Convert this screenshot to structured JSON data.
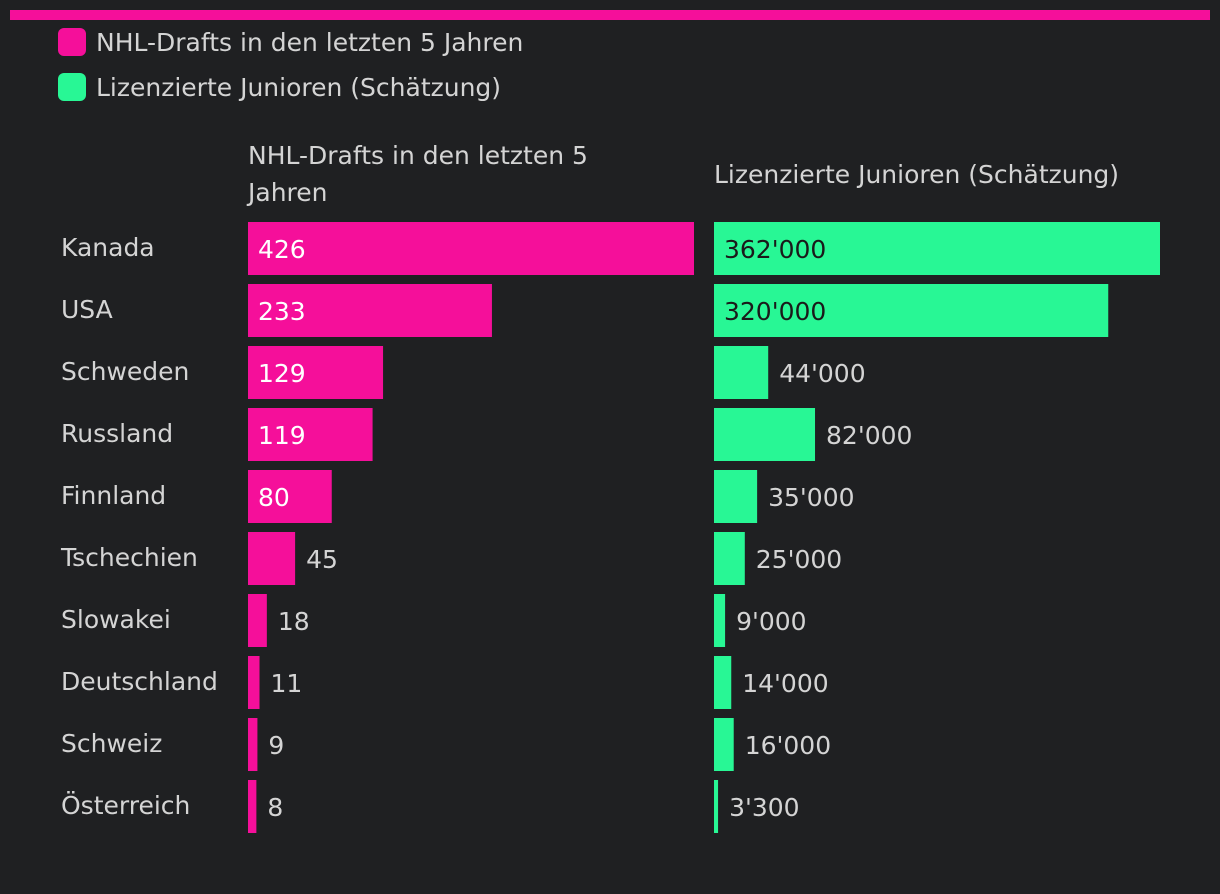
{
  "colors": {
    "background": "#1f2022",
    "drafts": "#f50f9a",
    "juniors": "#28f795",
    "text": "#d4d4d4"
  },
  "chart_data": {
    "type": "bar",
    "orientation": "horizontal",
    "categories": [
      "Kanada",
      "USA",
      "Schweden",
      "Russland",
      "Finnland",
      "Tschechien",
      "Slowakei",
      "Deutschland",
      "Schweiz",
      "Österreich"
    ],
    "series": [
      {
        "name": "NHL-Drafts in den letzten 5 Jahren",
        "column_header": "NHL-Drafts in den letzten 5 Jahren",
        "color": "#f50f9a",
        "values": [
          426,
          233,
          129,
          119,
          80,
          45,
          18,
          11,
          9,
          8
        ],
        "labels": [
          "426",
          "233",
          "129",
          "119",
          "80",
          "45",
          "18",
          "11",
          "9",
          "8"
        ],
        "max": 426
      },
      {
        "name": "Lizenzierte Junioren (Schätzung)",
        "column_header": "Lizenzierte Junioren (Schätzung)",
        "color": "#28f795",
        "values": [
          362000,
          320000,
          44000,
          82000,
          35000,
          25000,
          9000,
          14000,
          16000,
          3300
        ],
        "labels": [
          "362'000",
          "320'000",
          "44'000",
          "82'000",
          "35'000",
          "25'000",
          "9'000",
          "14'000",
          "16'000",
          "3'300"
        ],
        "max": 362000
      }
    ],
    "legend": {
      "position": "top-left"
    },
    "grid": false
  }
}
